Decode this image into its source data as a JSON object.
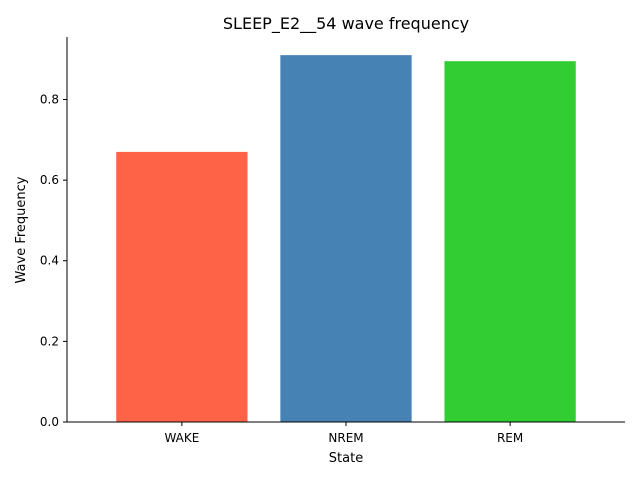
{
  "chart_data": {
    "type": "bar",
    "title": "SLEEP_E2__54 wave frequency",
    "xlabel": "State",
    "ylabel": "Wave Frequency",
    "categories": [
      "WAKE",
      "NREM",
      "REM"
    ],
    "values": [
      0.67,
      0.91,
      0.895
    ],
    "colors": [
      "#ff6347",
      "#4682b4",
      "#32cd32"
    ],
    "ylim": [
      0,
      0.955
    ],
    "yticks": [
      0.0,
      0.2,
      0.4,
      0.6,
      0.8
    ],
    "ytick_labels": [
      "0.0",
      "0.2",
      "0.4",
      "0.6",
      "0.8"
    ],
    "grid": false,
    "legend": "none"
  }
}
